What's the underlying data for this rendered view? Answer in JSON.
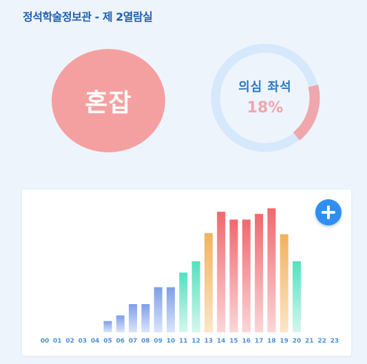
{
  "header": {
    "title": "정석학술정보관 - 제 2열람실"
  },
  "status": {
    "label": "혼잡",
    "color": "#f5a0a0"
  },
  "gauge": {
    "label": "의심 좌석",
    "value_text": "18%",
    "fraction": 0.18,
    "track_color": "#d6e8fb",
    "arc_color": "#f0a6ad"
  },
  "add_button": {
    "icon": "plus-icon"
  },
  "chart_data": {
    "type": "bar",
    "categories": [
      "00",
      "01",
      "02",
      "03",
      "04",
      "05",
      "06",
      "07",
      "08",
      "09",
      "10",
      "11",
      "12",
      "13",
      "14",
      "15",
      "16",
      "17",
      "18",
      "19",
      "20",
      "21",
      "22",
      "23"
    ],
    "values": [
      0,
      0,
      0,
      0,
      0,
      1,
      1.5,
      2.5,
      2.5,
      4,
      4,
      5.3,
      6.3,
      8.8,
      10.7,
      10,
      10,
      10.5,
      11,
      8.7,
      6.3,
      0,
      0,
      0
    ],
    "ylim": [
      0,
      11.5
    ],
    "tick_color": "#4a90d9",
    "color_groups": {
      "low": {
        "hours": [
          "05",
          "06",
          "07",
          "08",
          "09",
          "10"
        ],
        "top": "#7f9ee8",
        "bottom": "#dbe5fb"
      },
      "mid": {
        "hours": [
          "11",
          "12",
          "20"
        ],
        "top": "#55e0bf",
        "bottom": "#d4f7ee"
      },
      "warm": {
        "hours": [
          "13",
          "19"
        ],
        "top": "#f2b25e",
        "bottom": "#fce6c8"
      },
      "high": {
        "hours": [
          "14",
          "15",
          "16",
          "17",
          "18"
        ],
        "top": "#f0686e",
        "bottom": "#fbd6d8"
      }
    }
  }
}
